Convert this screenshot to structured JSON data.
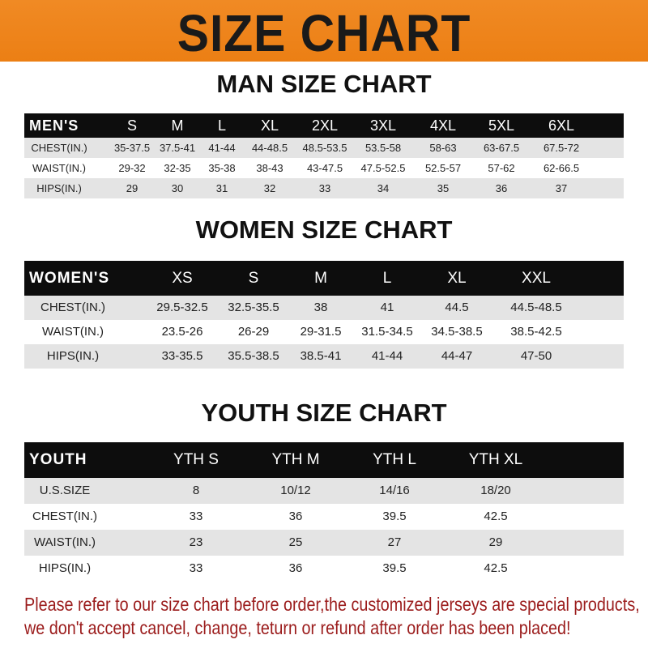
{
  "banner": {
    "title": "SIZE CHART",
    "color": "#ec7f14"
  },
  "men": {
    "title": "MAN SIZE CHART",
    "header": [
      "MEN'S",
      "S",
      "M",
      "L",
      "XL",
      "2XL",
      "3XL",
      "4XL",
      "5XL",
      "6XL"
    ],
    "rows": [
      [
        "CHEST(IN.)",
        "35-37.5",
        "37.5-41",
        "41-44",
        "44-48.5",
        "48.5-53.5",
        "53.5-58",
        "58-63",
        "63-67.5",
        "67.5-72"
      ],
      [
        "WAIST(IN.)",
        "29-32",
        "32-35",
        "35-38",
        "38-43",
        "43-47.5",
        "47.5-52.5",
        "52.5-57",
        "57-62",
        "62-66.5"
      ],
      [
        "HIPS(IN.)",
        "29",
        "30",
        "31",
        "32",
        "33",
        "34",
        "35",
        "36",
        "37"
      ]
    ]
  },
  "women": {
    "title": "WOMEN SIZE CHART",
    "header": [
      "WOMEN'S",
      "XS",
      "S",
      "M",
      "L",
      "XL",
      "XXL"
    ],
    "rows": [
      [
        "CHEST(IN.)",
        "29.5-32.5",
        "32.5-35.5",
        "38",
        "41",
        "44.5",
        "44.5-48.5"
      ],
      [
        "WAIST(IN.)",
        "23.5-26",
        "26-29",
        "29-31.5",
        "31.5-34.5",
        "34.5-38.5",
        "38.5-42.5"
      ],
      [
        "HIPS(IN.)",
        "33-35.5",
        "35.5-38.5",
        "38.5-41",
        "41-44",
        "44-47",
        "47-50"
      ]
    ]
  },
  "youth": {
    "title": "YOUTH SIZE CHART",
    "header": [
      "YOUTH",
      "YTH S",
      "YTH M",
      "YTH L",
      "YTH XL"
    ],
    "rows": [
      [
        "U.S.SIZE",
        "8",
        "10/12",
        "14/16",
        "18/20"
      ],
      [
        "CHEST(IN.)",
        "33",
        "36",
        "39.5",
        "42.5"
      ],
      [
        "WAIST(IN.)",
        "23",
        "25",
        "27",
        "29"
      ],
      [
        "HIPS(IN.)",
        "33",
        "36",
        "39.5",
        "42.5"
      ]
    ]
  },
  "note": {
    "line1": "Please refer to our size chart before order,the customized jerseys are special products,",
    "line2": "we don't accept cancel, change, teturn or refund after order has been placed!",
    "color": "#9b1c1c"
  }
}
